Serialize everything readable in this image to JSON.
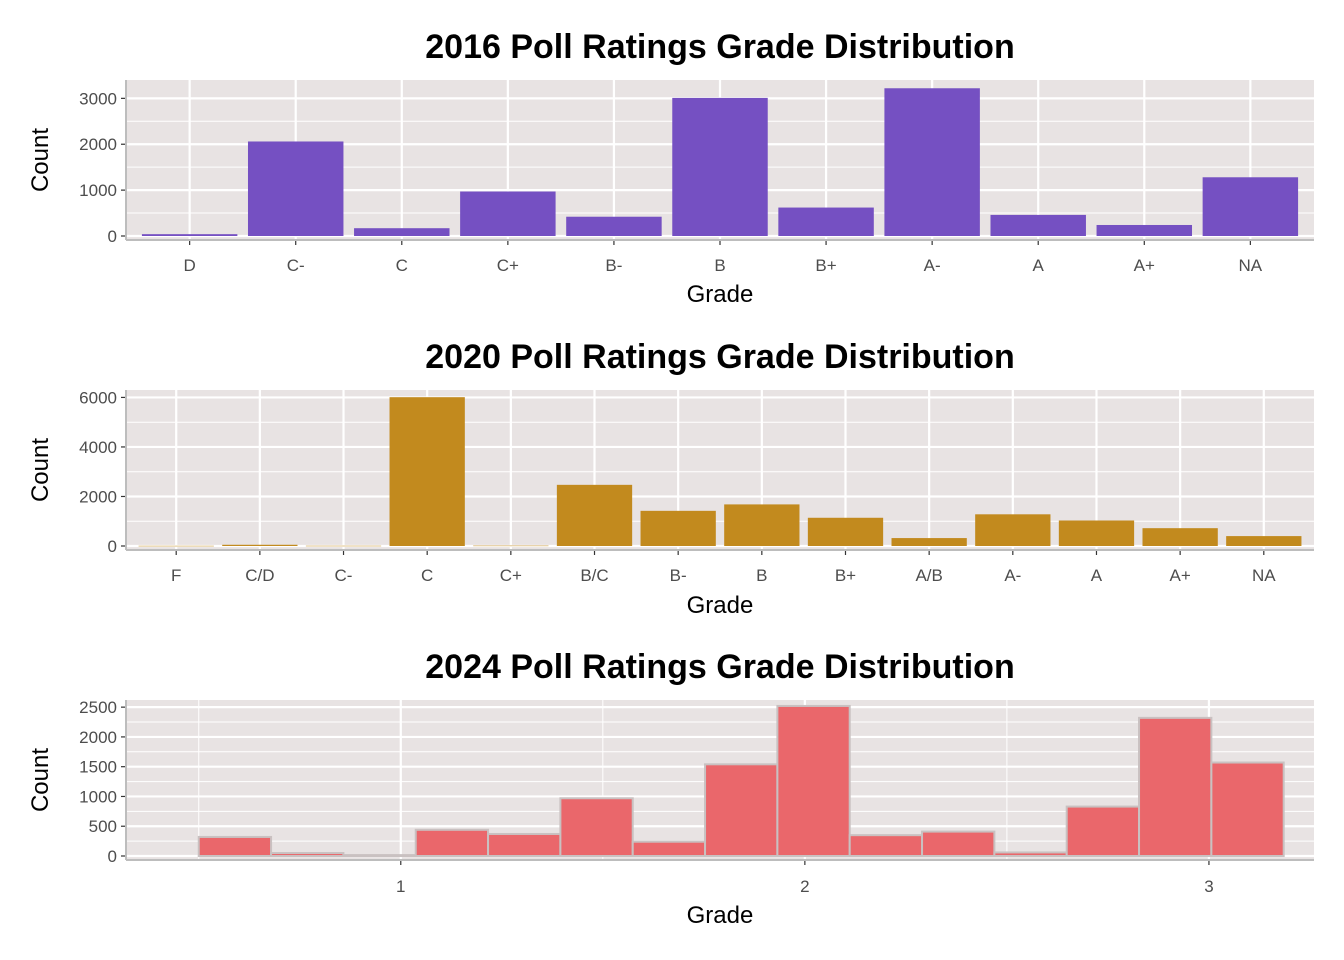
{
  "chart_data": [
    {
      "type": "bar",
      "title": "2016 Poll Ratings Grade Distribution",
      "xlabel": "Grade",
      "ylabel": "Count",
      "categories": [
        "D",
        "C-",
        "C",
        "C+",
        "B-",
        "B",
        "B+",
        "A-",
        "A",
        "A+",
        "NA"
      ],
      "values": [
        40,
        2060,
        170,
        970,
        420,
        3010,
        620,
        3220,
        460,
        240,
        1280
      ],
      "ylim": [
        0,
        3400
      ],
      "yticks": [
        0,
        1000,
        2000,
        3000
      ],
      "grid": true,
      "colors": {
        "fill": "#7550C2",
        "panel": "#E8E3E3",
        "grid": "#FFFFFF"
      }
    },
    {
      "type": "bar",
      "title": "2020 Poll Ratings Grade Distribution",
      "xlabel": "Grade",
      "ylabel": "Count",
      "categories": [
        "F",
        "C/D",
        "C-",
        "C",
        "C+",
        "B/C",
        "B-",
        "B",
        "B+",
        "A/B",
        "A-",
        "A",
        "A+",
        "NA"
      ],
      "values": [
        8,
        50,
        10,
        6010,
        15,
        2470,
        1420,
        1680,
        1140,
        320,
        1280,
        1030,
        720,
        400
      ],
      "ylim": [
        0,
        6300
      ],
      "yticks": [
        0,
        2000,
        4000,
        6000
      ],
      "grid": true,
      "colors": {
        "fill": "#C28A1E",
        "panel": "#E8E3E3",
        "grid": "#FFFFFF"
      }
    },
    {
      "type": "histogram",
      "title": "2024 Poll Ratings Grade Distribution",
      "xlabel": "Grade",
      "ylabel": "Count",
      "bins": [
        {
          "x0": 0.5,
          "x1": 0.679,
          "count": 320
        },
        {
          "x0": 0.679,
          "x1": 0.858,
          "count": 50
        },
        {
          "x0": 0.858,
          "x1": 1.037,
          "count": 15
        },
        {
          "x0": 1.037,
          "x1": 1.216,
          "count": 440
        },
        {
          "x0": 1.216,
          "x1": 1.395,
          "count": 370
        },
        {
          "x0": 1.395,
          "x1": 1.574,
          "count": 970
        },
        {
          "x0": 1.574,
          "x1": 1.753,
          "count": 240
        },
        {
          "x0": 1.753,
          "x1": 1.932,
          "count": 1540
        },
        {
          "x0": 1.932,
          "x1": 2.111,
          "count": 2520
        },
        {
          "x0": 2.111,
          "x1": 2.29,
          "count": 350
        },
        {
          "x0": 2.29,
          "x1": 2.469,
          "count": 410
        },
        {
          "x0": 2.469,
          "x1": 2.648,
          "count": 60
        },
        {
          "x0": 2.648,
          "x1": 2.827,
          "count": 830
        },
        {
          "x0": 2.827,
          "x1": 3.006,
          "count": 2320
        },
        {
          "x0": 3.006,
          "x1": 3.185,
          "count": 1570
        }
      ],
      "xlim": [
        0.32,
        3.26
      ],
      "xticks": [
        1,
        2,
        3
      ],
      "ylim": [
        0,
        2620
      ],
      "yticks": [
        0,
        500,
        1000,
        1500,
        2000,
        2500
      ],
      "grid": true,
      "colors": {
        "fill": "#EA676B",
        "outline": "#C9C1C1",
        "panel": "#E8E3E3",
        "grid": "#FFFFFF"
      }
    }
  ]
}
